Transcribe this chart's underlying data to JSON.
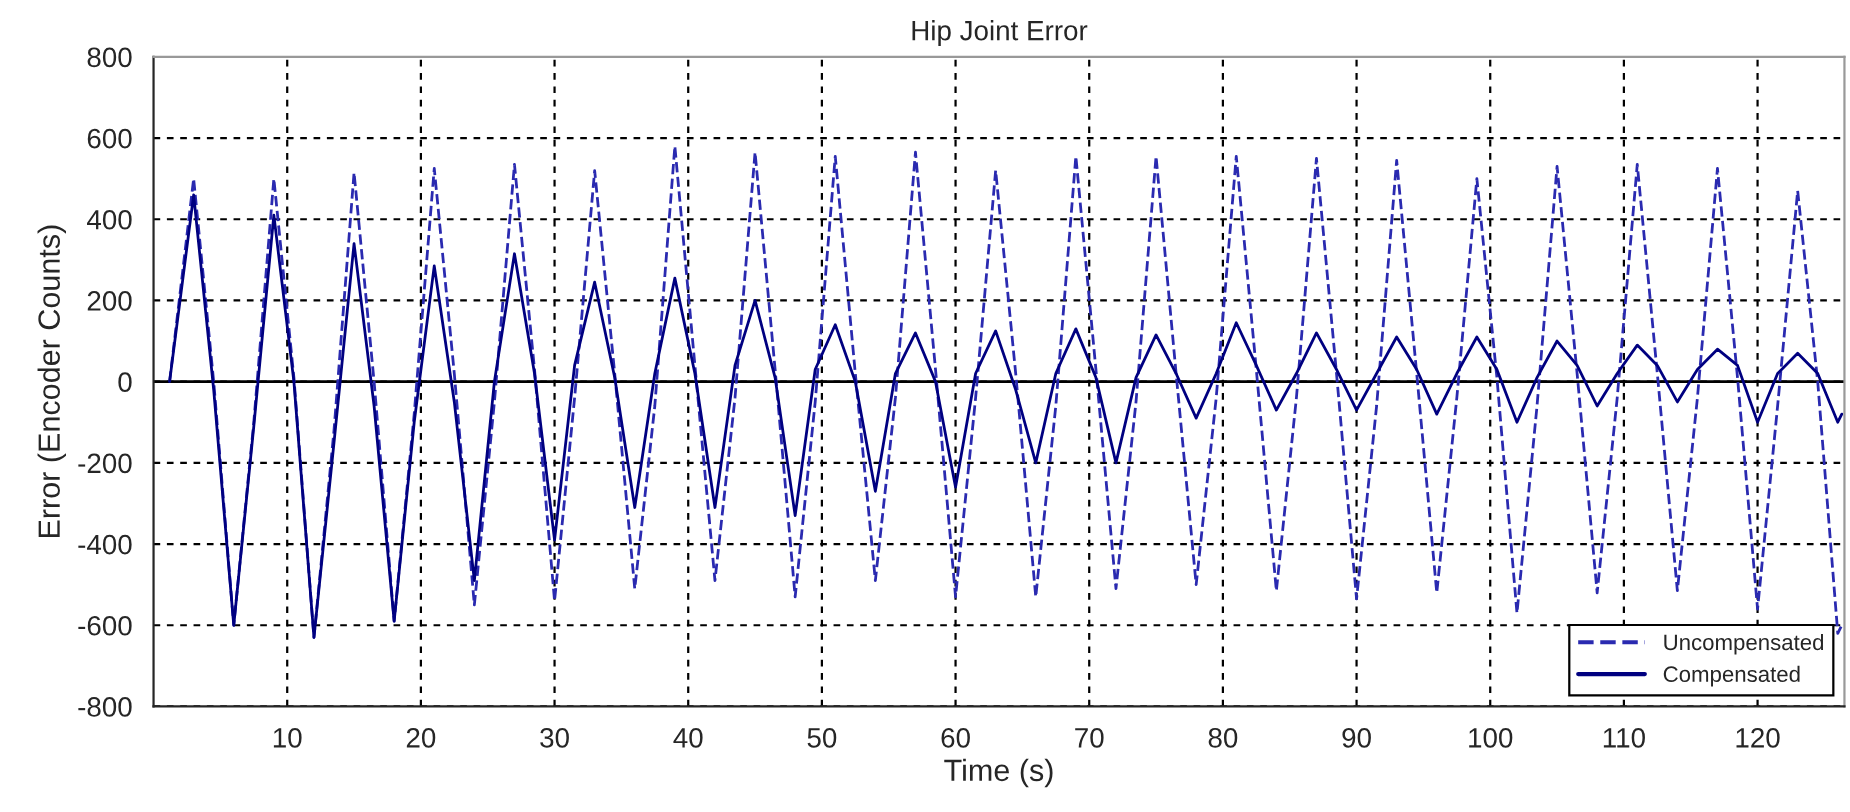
{
  "chart_data": {
    "type": "line",
    "title": "Hip Joint Error",
    "xlabel": "Time (s)",
    "ylabel": "Error (Encoder Counts)",
    "x": [
      1.2,
      3,
      4.5,
      6,
      7.5,
      9,
      10.5,
      12,
      13.5,
      15,
      16.5,
      18,
      19.5,
      21,
      22.5,
      24,
      25.5,
      27,
      28.5,
      30,
      31.5,
      33,
      34.5,
      36,
      37.5,
      39,
      40.5,
      42,
      43.5,
      45,
      46.5,
      48,
      49.5,
      51,
      52.5,
      54,
      55.5,
      57,
      58.5,
      60,
      61.5,
      63,
      64.5,
      66,
      67.5,
      69,
      70.5,
      72,
      73.5,
      75,
      76.5,
      78,
      79.5,
      81,
      82.5,
      84,
      85.5,
      87,
      88.5,
      90,
      91.5,
      93,
      94.5,
      96,
      97.5,
      99,
      100.5,
      102,
      103.5,
      105,
      106.5,
      108,
      109.5,
      111,
      112.5,
      114,
      115.5,
      117,
      118.5,
      120,
      121.5,
      123,
      124.5,
      126,
      126.3
    ],
    "series": [
      {
        "name": "Uncompensated",
        "color": "#2a2ab0",
        "line_style": "dashed",
        "values": [
          0,
          500,
          0,
          -600,
          -100,
          500,
          10,
          -630,
          -120,
          515,
          0,
          -590,
          -80,
          525,
          20,
          -550,
          -50,
          535,
          30,
          -540,
          -40,
          520,
          20,
          -510,
          -60,
          580,
          40,
          -490,
          -40,
          565,
          30,
          -530,
          -50,
          555,
          20,
          -490,
          -40,
          565,
          30,
          -530,
          -40,
          520,
          20,
          -530,
          -60,
          555,
          30,
          -510,
          -50,
          555,
          20,
          -500,
          -40,
          555,
          30,
          -515,
          -40,
          550,
          20,
          -535,
          -60,
          545,
          20,
          -520,
          -40,
          500,
          10,
          -570,
          -60,
          530,
          20,
          -520,
          -40,
          535,
          20,
          -515,
          -40,
          525,
          10,
          -560,
          -60,
          470,
          0,
          -620,
          -600
        ]
      },
      {
        "name": "Compensated",
        "color": "#000080",
        "line_style": "solid",
        "values": [
          0,
          460,
          -20,
          -600,
          -110,
          410,
          0,
          -630,
          -150,
          340,
          -60,
          -590,
          -100,
          285,
          -50,
          -490,
          0,
          315,
          20,
          -390,
          40,
          245,
          10,
          -310,
          20,
          255,
          20,
          -310,
          40,
          200,
          10,
          -330,
          30,
          140,
          0,
          -270,
          20,
          120,
          0,
          -260,
          20,
          125,
          -20,
          -200,
          20,
          130,
          10,
          -200,
          10,
          115,
          20,
          -90,
          20,
          145,
          40,
          -70,
          20,
          120,
          30,
          -70,
          20,
          110,
          30,
          -80,
          20,
          110,
          30,
          -100,
          10,
          100,
          40,
          -60,
          20,
          90,
          40,
          -50,
          30,
          80,
          40,
          -100,
          20,
          70,
          20,
          -100,
          -80
        ]
      }
    ],
    "xlim": [
      0,
      126.5
    ],
    "xticks": [
      10,
      20,
      30,
      40,
      50,
      60,
      70,
      80,
      90,
      100,
      110,
      120
    ],
    "ylim": [
      -800,
      800
    ],
    "yticks": [
      -800,
      -600,
      -400,
      -200,
      0,
      200,
      400,
      600,
      800
    ],
    "ref_lines": [
      {
        "axis": "y",
        "value": 0,
        "color": "#000000",
        "line_style": "solid"
      }
    ],
    "grid": true,
    "legend": "lower right",
    "marker": "none"
  }
}
